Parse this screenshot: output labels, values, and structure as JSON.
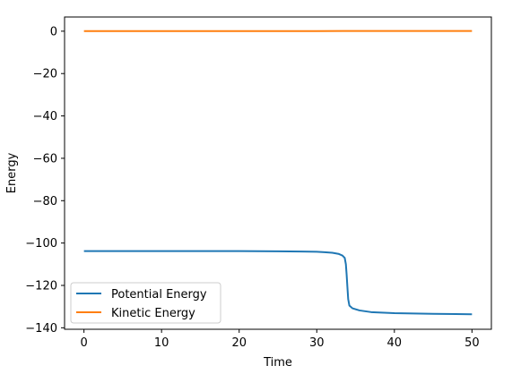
{
  "chart_data": {
    "type": "line",
    "xlabel": "Time",
    "ylabel": "Energy",
    "xlim": [
      -2.5,
      52.5
    ],
    "ylim": [
      -140.7,
      6.7
    ],
    "xticks": [
      0,
      10,
      20,
      30,
      40,
      50
    ],
    "yticks": [
      0,
      -20,
      -40,
      -60,
      -80,
      -100,
      -120,
      -140
    ],
    "xtick_labels": [
      "0",
      "10",
      "20",
      "30",
      "40",
      "50"
    ],
    "ytick_labels": [
      "0",
      "−20",
      "−40",
      "−60",
      "−80",
      "−100",
      "−120",
      "−140"
    ],
    "grid": false,
    "legend_position": "bottom-left",
    "series": [
      {
        "name": "Potential Energy",
        "color": "#1f77b4",
        "points": [
          [
            0,
            -103.8
          ],
          [
            5,
            -103.8
          ],
          [
            10,
            -103.8
          ],
          [
            15,
            -103.8
          ],
          [
            20,
            -103.8
          ],
          [
            25,
            -103.9
          ],
          [
            28,
            -104.0
          ],
          [
            30,
            -104.1
          ],
          [
            31,
            -104.3
          ],
          [
            32,
            -104.6
          ],
          [
            32.8,
            -105.1
          ],
          [
            33.3,
            -105.9
          ],
          [
            33.6,
            -107.0
          ],
          [
            33.75,
            -110.0
          ],
          [
            33.85,
            -115.0
          ],
          [
            33.95,
            -121.0
          ],
          [
            34.05,
            -126.5
          ],
          [
            34.2,
            -129.5
          ],
          [
            34.6,
            -130.8
          ],
          [
            35.5,
            -131.8
          ],
          [
            37,
            -132.6
          ],
          [
            40,
            -133.1
          ],
          [
            45,
            -133.4
          ],
          [
            50,
            -133.6
          ]
        ]
      },
      {
        "name": "Kinetic Energy",
        "color": "#ff7f0e",
        "points": [
          [
            0,
            0.05
          ],
          [
            10,
            0.05
          ],
          [
            20,
            0.05
          ],
          [
            30,
            0.05
          ],
          [
            34,
            0.1
          ],
          [
            40,
            0.1
          ],
          [
            50,
            0.1
          ]
        ]
      }
    ]
  }
}
